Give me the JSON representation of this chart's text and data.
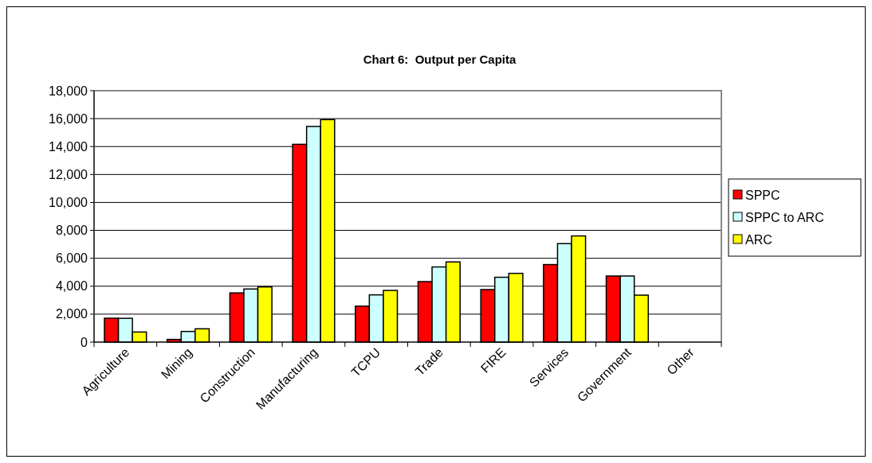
{
  "chart_data": {
    "type": "bar",
    "title": "Chart 6:  Output per Capita",
    "categories": [
      "Agriculture",
      "Mining",
      "Construction",
      "Manufacturing",
      "TCPU",
      "Trade",
      "FIRE",
      "Services",
      "Government",
      "Other"
    ],
    "series": [
      {
        "name": "SPPC",
        "color": "#ff0000",
        "values": [
          1710,
          190,
          3520,
          14160,
          2570,
          4330,
          3760,
          5550,
          4730,
          null
        ]
      },
      {
        "name": "SPPC to ARC",
        "color": "#ccffff",
        "values": [
          1700,
          760,
          3800,
          15440,
          3380,
          5380,
          4640,
          7050,
          4730,
          null
        ]
      },
      {
        "name": "ARC",
        "color": "#ffff00",
        "values": [
          720,
          950,
          3950,
          15930,
          3700,
          5740,
          4920,
          7600,
          3360,
          null
        ]
      }
    ],
    "ylim": [
      0,
      18000
    ],
    "yticks": [
      {
        "value": 0,
        "label": "0"
      },
      {
        "value": 2000,
        "label": "2,000"
      },
      {
        "value": 4000,
        "label": "4,000"
      },
      {
        "value": 6000,
        "label": "6,000"
      },
      {
        "value": 8000,
        "label": "8,000"
      },
      {
        "value": 10000,
        "label": "10,000"
      },
      {
        "value": 12000,
        "label": "12,000"
      },
      {
        "value": 14000,
        "label": "14,000"
      },
      {
        "value": 16000,
        "label": "16,000"
      },
      {
        "value": 18000,
        "label": "18,000"
      }
    ],
    "grid": "y",
    "legend": "right"
  }
}
